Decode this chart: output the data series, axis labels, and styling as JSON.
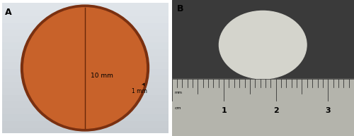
{
  "fig_width": 5.0,
  "fig_height": 1.93,
  "dpi": 100,
  "panel_A_label": "A",
  "panel_B_label": "B",
  "bg_color_A_left": "#c8cdd4",
  "bg_color_A_right": "#d8dde4",
  "circle_fill_color": "#c8622a",
  "circle_edge_color": "#7a3010",
  "circle_line_color": "#6a2808",
  "diameter_label": "10 mm",
  "thickness_label": "1 mm",
  "label_fontsize": 6.5,
  "panel_label_fontsize": 9,
  "bg_color_B_top": "#3c3c3c",
  "specimen_color": "#d4d4cc",
  "ruler_bg_color": "#b8b8b0",
  "ruler_text_color": "#111111"
}
